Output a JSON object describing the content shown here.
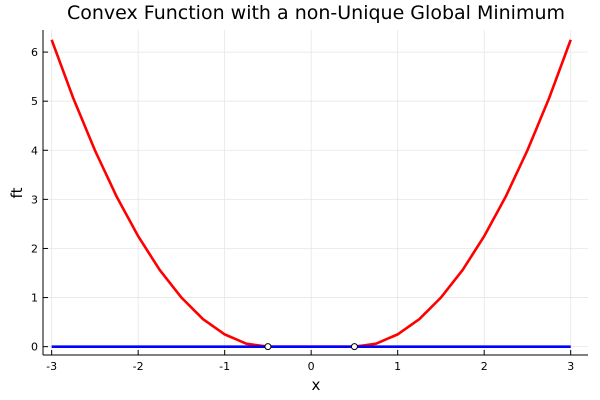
{
  "chart_data": {
    "type": "line",
    "title": "Convex Function with a non-Unique Global Minimum",
    "xlabel": "x",
    "ylabel": "ft",
    "xlim": [
      -3.1,
      3.2
    ],
    "ylim": [
      -0.17,
      6.45
    ],
    "xticks": [
      -3,
      -2,
      -1,
      0,
      1,
      2,
      3
    ],
    "yticks": [
      0,
      1,
      2,
      3,
      4,
      5,
      6
    ],
    "grid": true,
    "legend": "none",
    "series": [
      {
        "color": "#ff0000",
        "x": [
          -3.0,
          -2.75,
          -2.5,
          -2.25,
          -2.0,
          -1.75,
          -1.5,
          -1.25,
          -1.0,
          -0.75,
          -0.5,
          0.0,
          0.5,
          0.75,
          1.0,
          1.25,
          1.5,
          1.75,
          2.0,
          2.25,
          2.5,
          2.75,
          3.0
        ],
        "y": [
          6.25,
          5.06,
          4.0,
          3.06,
          2.25,
          1.56,
          1.0,
          0.56,
          0.25,
          0.06,
          0.0,
          0.0,
          0.0,
          0.06,
          0.25,
          0.56,
          1.0,
          1.56,
          2.25,
          3.06,
          4.0,
          5.06,
          6.25
        ]
      },
      {
        "color": "#0000ff",
        "x": [
          -3.0,
          3.0
        ],
        "y": [
          0.0,
          0.0
        ]
      }
    ],
    "points": [
      {
        "x": -0.5,
        "y": 0.0
      },
      {
        "x": 0.5,
        "y": 0.0
      }
    ]
  }
}
